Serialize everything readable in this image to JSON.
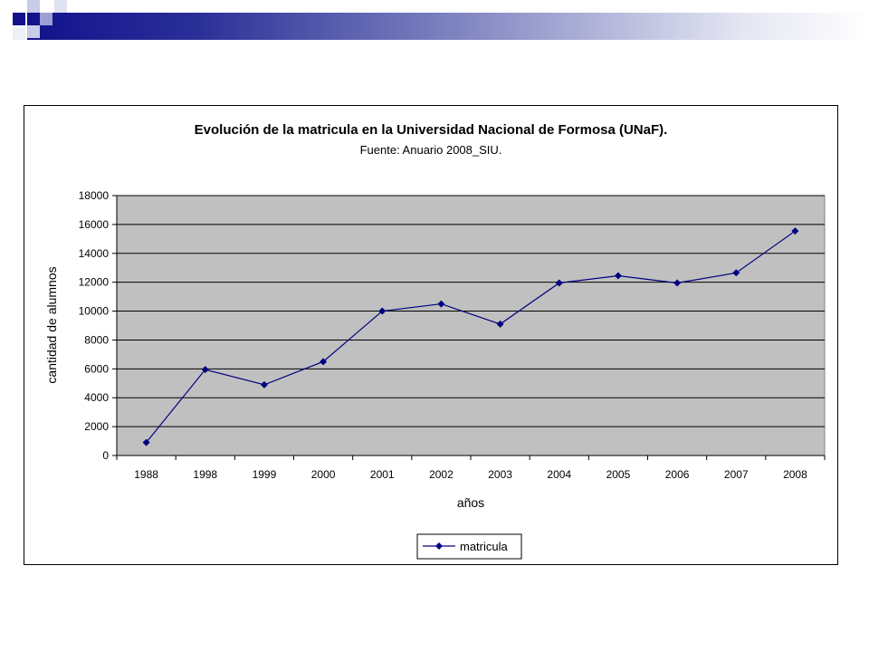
{
  "chart_data": {
    "type": "line",
    "title": "Evolución de la matricula en la Universidad Nacional de Formosa (UNaF).",
    "subtitle": "Fuente: Anuario 2008_SIU.",
    "xlabel": "años",
    "ylabel": "cantidad de alumnos",
    "categories": [
      "1988",
      "1998",
      "1999",
      "2000",
      "2001",
      "2002",
      "2003",
      "2004",
      "2005",
      "2006",
      "2007",
      "2008"
    ],
    "series": [
      {
        "name": "matricula",
        "values": [
          900,
          5950,
          4900,
          6500,
          10000,
          10500,
          9100,
          11950,
          12450,
          11950,
          12650,
          15550
        ]
      }
    ],
    "ylim": [
      0,
      18000
    ],
    "yticks": [
      "0",
      "2000",
      "4000",
      "6000",
      "8000",
      "10000",
      "12000",
      "14000",
      "16000",
      "18000"
    ],
    "grid": true,
    "legend_position": "bottom",
    "colors": {
      "line": "#000080",
      "marker": "#000080",
      "plot_background": "#c0c0c0",
      "gridline": "#000000"
    }
  }
}
